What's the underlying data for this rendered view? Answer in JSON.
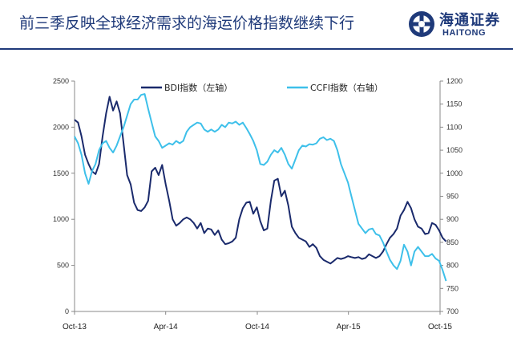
{
  "header": {
    "title": "前三季反映全球经济需求的海运价格指数继续下行",
    "logo_cn": "海通证券",
    "logo_en": "HAITONG"
  },
  "colors": {
    "brand": "#1f3a7a",
    "bdi": "#1a2a6c",
    "ccfi": "#3ec0ea"
  },
  "chart_data": {
    "type": "line",
    "x_tick_labels": [
      "Oct-13",
      "Apr-14",
      "Oct-14",
      "Apr-15",
      "Oct-15"
    ],
    "x_ticks": [
      "2013-10",
      "2014-04",
      "2014-10",
      "2015-04",
      "2015-10"
    ],
    "xlim": [
      "2013-10",
      "2015-10"
    ],
    "left_axis": {
      "ylim": [
        0,
        2500
      ],
      "ticks": [
        0,
        500,
        1000,
        1500,
        2000,
        2500
      ]
    },
    "right_axis": {
      "ylim": [
        700,
        1200
      ],
      "ticks": [
        700,
        750,
        800,
        850,
        900,
        950,
        1000,
        1050,
        1100,
        1150,
        1200
      ]
    },
    "legend_position": "top",
    "series": [
      {
        "name": "BDI指数（左轴）",
        "axis": "left",
        "points": [
          [
            "2013-10-01",
            2080
          ],
          [
            "2013-10-08",
            2050
          ],
          [
            "2013-10-15",
            1900
          ],
          [
            "2013-10-22",
            1700
          ],
          [
            "2013-10-29",
            1600
          ],
          [
            "2013-11-05",
            1520
          ],
          [
            "2013-11-12",
            1490
          ],
          [
            "2013-11-19",
            1600
          ],
          [
            "2013-11-26",
            1900
          ],
          [
            "2013-12-03",
            2150
          ],
          [
            "2013-12-10",
            2330
          ],
          [
            "2013-12-17",
            2180
          ],
          [
            "2013-12-24",
            2280
          ],
          [
            "2013-12-31",
            2150
          ],
          [
            "2014-01-07",
            1820
          ],
          [
            "2014-01-14",
            1480
          ],
          [
            "2014-01-21",
            1380
          ],
          [
            "2014-01-28",
            1180
          ],
          [
            "2014-02-04",
            1100
          ],
          [
            "2014-02-11",
            1090
          ],
          [
            "2014-02-18",
            1130
          ],
          [
            "2014-02-25",
            1200
          ],
          [
            "2014-03-04",
            1520
          ],
          [
            "2014-03-11",
            1560
          ],
          [
            "2014-03-18",
            1480
          ],
          [
            "2014-03-25",
            1590
          ],
          [
            "2014-04-01",
            1380
          ],
          [
            "2014-04-08",
            1200
          ],
          [
            "2014-04-15",
            1000
          ],
          [
            "2014-04-22",
            930
          ],
          [
            "2014-04-29",
            960
          ],
          [
            "2014-05-06",
            1000
          ],
          [
            "2014-05-13",
            1020
          ],
          [
            "2014-05-20",
            1000
          ],
          [
            "2014-05-27",
            960
          ],
          [
            "2014-06-03",
            900
          ],
          [
            "2014-06-10",
            960
          ],
          [
            "2014-06-17",
            850
          ],
          [
            "2014-06-24",
            900
          ],
          [
            "2014-07-01",
            890
          ],
          [
            "2014-07-08",
            830
          ],
          [
            "2014-07-15",
            880
          ],
          [
            "2014-07-22",
            780
          ],
          [
            "2014-07-29",
            730
          ],
          [
            "2014-08-05",
            740
          ],
          [
            "2014-08-12",
            760
          ],
          [
            "2014-08-19",
            800
          ],
          [
            "2014-08-26",
            1000
          ],
          [
            "2014-09-02",
            1120
          ],
          [
            "2014-09-09",
            1180
          ],
          [
            "2014-09-16",
            1190
          ],
          [
            "2014-09-23",
            1060
          ],
          [
            "2014-09-30",
            1130
          ],
          [
            "2014-10-07",
            980
          ],
          [
            "2014-10-14",
            880
          ],
          [
            "2014-10-21",
            900
          ],
          [
            "2014-10-28",
            1200
          ],
          [
            "2014-11-04",
            1420
          ],
          [
            "2014-11-11",
            1440
          ],
          [
            "2014-11-18",
            1250
          ],
          [
            "2014-11-25",
            1310
          ],
          [
            "2014-12-02",
            1150
          ],
          [
            "2014-12-09",
            920
          ],
          [
            "2014-12-16",
            850
          ],
          [
            "2014-12-23",
            800
          ],
          [
            "2014-12-30",
            780
          ],
          [
            "2015-01-06",
            760
          ],
          [
            "2015-01-13",
            700
          ],
          [
            "2015-01-20",
            730
          ],
          [
            "2015-01-27",
            690
          ],
          [
            "2015-02-03",
            600
          ],
          [
            "2015-02-10",
            560
          ],
          [
            "2015-02-17",
            540
          ],
          [
            "2015-02-24",
            520
          ],
          [
            "2015-03-03",
            550
          ],
          [
            "2015-03-10",
            580
          ],
          [
            "2015-03-17",
            570
          ],
          [
            "2015-03-24",
            580
          ],
          [
            "2015-03-31",
            600
          ],
          [
            "2015-04-07",
            590
          ],
          [
            "2015-04-14",
            580
          ],
          [
            "2015-04-21",
            590
          ],
          [
            "2015-04-28",
            570
          ],
          [
            "2015-05-05",
            580
          ],
          [
            "2015-05-12",
            620
          ],
          [
            "2015-05-19",
            600
          ],
          [
            "2015-05-26",
            580
          ],
          [
            "2015-06-02",
            600
          ],
          [
            "2015-06-09",
            650
          ],
          [
            "2015-06-16",
            730
          ],
          [
            "2015-06-23",
            800
          ],
          [
            "2015-06-30",
            840
          ],
          [
            "2015-07-07",
            900
          ],
          [
            "2015-07-14",
            1040
          ],
          [
            "2015-07-21",
            1100
          ],
          [
            "2015-07-28",
            1190
          ],
          [
            "2015-08-04",
            1120
          ],
          [
            "2015-08-11",
            1000
          ],
          [
            "2015-08-18",
            920
          ],
          [
            "2015-08-25",
            900
          ],
          [
            "2015-09-01",
            840
          ],
          [
            "2015-09-08",
            850
          ],
          [
            "2015-09-15",
            960
          ],
          [
            "2015-09-22",
            940
          ],
          [
            "2015-09-29",
            880
          ],
          [
            "2015-10-06",
            800
          ],
          [
            "2015-10-13",
            760
          ]
        ]
      },
      {
        "name": "CCFI指数（右轴）",
        "axis": "right",
        "points": [
          [
            "2013-10-01",
            1080
          ],
          [
            "2013-10-08",
            1065
          ],
          [
            "2013-10-15",
            1040
          ],
          [
            "2013-10-22",
            1000
          ],
          [
            "2013-10-29",
            977
          ],
          [
            "2013-11-05",
            1005
          ],
          [
            "2013-11-12",
            1020
          ],
          [
            "2013-11-19",
            1050
          ],
          [
            "2013-11-26",
            1065
          ],
          [
            "2013-12-03",
            1070
          ],
          [
            "2013-12-10",
            1055
          ],
          [
            "2013-12-17",
            1045
          ],
          [
            "2013-12-24",
            1060
          ],
          [
            "2013-12-31",
            1080
          ],
          [
            "2014-01-07",
            1100
          ],
          [
            "2014-01-14",
            1125
          ],
          [
            "2014-01-21",
            1150
          ],
          [
            "2014-01-28",
            1160
          ],
          [
            "2014-02-04",
            1160
          ],
          [
            "2014-02-11",
            1170
          ],
          [
            "2014-02-18",
            1172
          ],
          [
            "2014-02-25",
            1140
          ],
          [
            "2014-03-04",
            1110
          ],
          [
            "2014-03-11",
            1080
          ],
          [
            "2014-03-18",
            1070
          ],
          [
            "2014-03-25",
            1055
          ],
          [
            "2014-04-01",
            1060
          ],
          [
            "2014-04-08",
            1065
          ],
          [
            "2014-04-15",
            1062
          ],
          [
            "2014-04-22",
            1070
          ],
          [
            "2014-04-29",
            1065
          ],
          [
            "2014-05-06",
            1070
          ],
          [
            "2014-05-13",
            1090
          ],
          [
            "2014-05-20",
            1100
          ],
          [
            "2014-05-27",
            1105
          ],
          [
            "2014-06-03",
            1110
          ],
          [
            "2014-06-10",
            1108
          ],
          [
            "2014-06-17",
            1095
          ],
          [
            "2014-06-24",
            1090
          ],
          [
            "2014-07-01",
            1095
          ],
          [
            "2014-07-08",
            1090
          ],
          [
            "2014-07-15",
            1095
          ],
          [
            "2014-07-22",
            1105
          ],
          [
            "2014-07-29",
            1100
          ],
          [
            "2014-08-05",
            1110
          ],
          [
            "2014-08-12",
            1108
          ],
          [
            "2014-08-19",
            1112
          ],
          [
            "2014-08-26",
            1105
          ],
          [
            "2014-09-02",
            1110
          ],
          [
            "2014-09-09",
            1098
          ],
          [
            "2014-09-16",
            1085
          ],
          [
            "2014-09-23",
            1070
          ],
          [
            "2014-09-30",
            1050
          ],
          [
            "2014-10-07",
            1020
          ],
          [
            "2014-10-14",
            1018
          ],
          [
            "2014-10-21",
            1025
          ],
          [
            "2014-10-28",
            1040
          ],
          [
            "2014-11-04",
            1050
          ],
          [
            "2014-11-11",
            1045
          ],
          [
            "2014-11-18",
            1055
          ],
          [
            "2014-11-25",
            1040
          ],
          [
            "2014-12-02",
            1020
          ],
          [
            "2014-12-09",
            1010
          ],
          [
            "2014-12-16",
            1030
          ],
          [
            "2014-12-23",
            1050
          ],
          [
            "2014-12-30",
            1060
          ],
          [
            "2015-01-06",
            1058
          ],
          [
            "2015-01-13",
            1063
          ],
          [
            "2015-01-20",
            1062
          ],
          [
            "2015-01-27",
            1065
          ],
          [
            "2015-02-03",
            1075
          ],
          [
            "2015-02-10",
            1078
          ],
          [
            "2015-02-17",
            1072
          ],
          [
            "2015-02-24",
            1075
          ],
          [
            "2015-03-03",
            1070
          ],
          [
            "2015-03-10",
            1050
          ],
          [
            "2015-03-17",
            1020
          ],
          [
            "2015-03-24",
            1000
          ],
          [
            "2015-03-31",
            980
          ],
          [
            "2015-04-07",
            950
          ],
          [
            "2015-04-14",
            920
          ],
          [
            "2015-04-21",
            890
          ],
          [
            "2015-04-28",
            880
          ],
          [
            "2015-05-05",
            870
          ],
          [
            "2015-05-12",
            878
          ],
          [
            "2015-05-19",
            880
          ],
          [
            "2015-05-26",
            868
          ],
          [
            "2015-06-02",
            865
          ],
          [
            "2015-06-09",
            850
          ],
          [
            "2015-06-16",
            830
          ],
          [
            "2015-06-23",
            812
          ],
          [
            "2015-06-30",
            800
          ],
          [
            "2015-07-07",
            792
          ],
          [
            "2015-07-14",
            810
          ],
          [
            "2015-07-21",
            845
          ],
          [
            "2015-07-28",
            830
          ],
          [
            "2015-08-04",
            800
          ],
          [
            "2015-08-11",
            830
          ],
          [
            "2015-08-18",
            840
          ],
          [
            "2015-08-25",
            830
          ],
          [
            "2015-09-01",
            820
          ],
          [
            "2015-09-08",
            820
          ],
          [
            "2015-09-15",
            825
          ],
          [
            "2015-09-22",
            815
          ],
          [
            "2015-09-29",
            810
          ],
          [
            "2015-10-06",
            790
          ],
          [
            "2015-10-13",
            766
          ]
        ]
      }
    ]
  }
}
